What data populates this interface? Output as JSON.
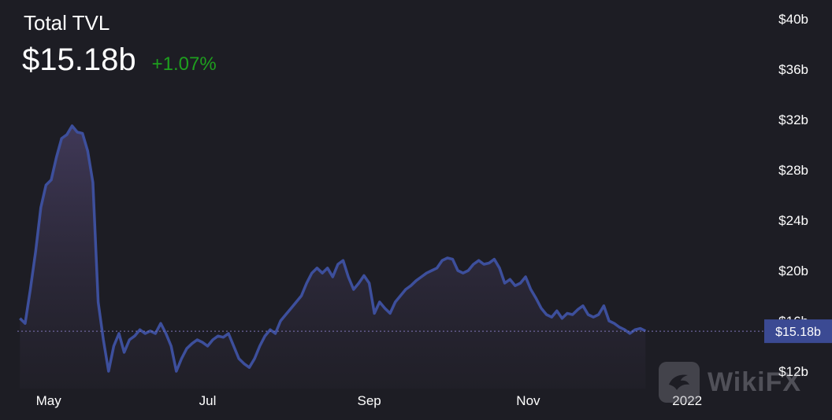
{
  "header": {
    "title": "Total TVL",
    "value": "$15.18b",
    "change": "+1.07%"
  },
  "colors": {
    "background": "#1d1d24",
    "line": "#3d4f9c",
    "change_positive": "#1e9f1e",
    "price_tag_bg": "#3b4a93"
  },
  "watermark": {
    "text": "WikiFX",
    "icon": "wikifx-logo-icon"
  },
  "current_price_label": "$15.18b",
  "chart_data": {
    "type": "area",
    "title": "Total TVL",
    "y_axis_position": "right",
    "ylim": [
      12,
      40
    ],
    "yticks": [
      {
        "value": 40,
        "label": "$40b"
      },
      {
        "value": 36,
        "label": "$36b"
      },
      {
        "value": 32,
        "label": "$32b"
      },
      {
        "value": 28,
        "label": "$28b"
      },
      {
        "value": 24,
        "label": "$24b"
      },
      {
        "value": 20,
        "label": "$20b"
      },
      {
        "value": 16,
        "label": "$16b"
      },
      {
        "value": 12,
        "label": "$12b"
      }
    ],
    "xlim": [
      "2021-04-19",
      "2022-01-23"
    ],
    "xticks": [
      {
        "x": "2021-05-01",
        "label": "May"
      },
      {
        "x": "2021-07-01",
        "label": "Jul"
      },
      {
        "x": "2021-09-01",
        "label": "Sep"
      },
      {
        "x": "2021-11-01",
        "label": "Nov"
      },
      {
        "x": "2022-01-01",
        "label": "2022"
      }
    ],
    "current_value": 15.18,
    "series": [
      {
        "points": [
          [
            "2021-04-20",
            16.2
          ],
          [
            "2021-04-22",
            15.8
          ],
          [
            "2021-04-24",
            18.5
          ],
          [
            "2021-04-26",
            21.5
          ],
          [
            "2021-04-28",
            25.0
          ],
          [
            "2021-04-30",
            26.8
          ],
          [
            "2021-05-02",
            27.2
          ],
          [
            "2021-05-04",
            29.0
          ],
          [
            "2021-05-06",
            30.5
          ],
          [
            "2021-05-08",
            30.8
          ],
          [
            "2021-05-10",
            31.5
          ],
          [
            "2021-05-12",
            31.0
          ],
          [
            "2021-05-14",
            30.9
          ],
          [
            "2021-05-16",
            29.5
          ],
          [
            "2021-05-18",
            27.0
          ],
          [
            "2021-05-20",
            17.5
          ],
          [
            "2021-05-22",
            14.5
          ],
          [
            "2021-05-24",
            12.0
          ],
          [
            "2021-05-26",
            14.0
          ],
          [
            "2021-05-28",
            15.0
          ],
          [
            "2021-05-30",
            13.5
          ],
          [
            "2021-06-01",
            14.5
          ],
          [
            "2021-06-03",
            14.8
          ],
          [
            "2021-06-05",
            15.3
          ],
          [
            "2021-06-07",
            15.0
          ],
          [
            "2021-06-09",
            15.2
          ],
          [
            "2021-06-11",
            15.0
          ],
          [
            "2021-06-13",
            15.8
          ],
          [
            "2021-06-15",
            15.0
          ],
          [
            "2021-06-17",
            14.0
          ],
          [
            "2021-06-19",
            12.0
          ],
          [
            "2021-06-21",
            13.0
          ],
          [
            "2021-06-23",
            13.8
          ],
          [
            "2021-06-25",
            14.2
          ],
          [
            "2021-06-27",
            14.5
          ],
          [
            "2021-06-29",
            14.3
          ],
          [
            "2021-07-01",
            14.0
          ],
          [
            "2021-07-03",
            14.5
          ],
          [
            "2021-07-05",
            14.8
          ],
          [
            "2021-07-07",
            14.7
          ],
          [
            "2021-07-09",
            15.0
          ],
          [
            "2021-07-11",
            14.0
          ],
          [
            "2021-07-13",
            13.0
          ],
          [
            "2021-07-15",
            12.6
          ],
          [
            "2021-07-17",
            12.3
          ],
          [
            "2021-07-19",
            13.0
          ],
          [
            "2021-07-21",
            14.0
          ],
          [
            "2021-07-23",
            14.8
          ],
          [
            "2021-07-25",
            15.3
          ],
          [
            "2021-07-27",
            15.0
          ],
          [
            "2021-07-29",
            16.0
          ],
          [
            "2021-07-31",
            16.5
          ],
          [
            "2021-08-02",
            17.0
          ],
          [
            "2021-08-04",
            17.5
          ],
          [
            "2021-08-06",
            18.0
          ],
          [
            "2021-08-08",
            19.0
          ],
          [
            "2021-08-10",
            19.8
          ],
          [
            "2021-08-12",
            20.2
          ],
          [
            "2021-08-14",
            19.8
          ],
          [
            "2021-08-16",
            20.2
          ],
          [
            "2021-08-18",
            19.5
          ],
          [
            "2021-08-20",
            20.5
          ],
          [
            "2021-08-22",
            20.8
          ],
          [
            "2021-08-24",
            19.5
          ],
          [
            "2021-08-26",
            18.5
          ],
          [
            "2021-08-28",
            19.0
          ],
          [
            "2021-08-30",
            19.6
          ],
          [
            "2021-09-01",
            19.0
          ],
          [
            "2021-09-03",
            16.6
          ],
          [
            "2021-09-05",
            17.5
          ],
          [
            "2021-09-07",
            17.0
          ],
          [
            "2021-09-09",
            16.6
          ],
          [
            "2021-09-11",
            17.5
          ],
          [
            "2021-09-13",
            18.0
          ],
          [
            "2021-09-15",
            18.5
          ],
          [
            "2021-09-17",
            18.8
          ],
          [
            "2021-09-19",
            19.2
          ],
          [
            "2021-09-21",
            19.5
          ],
          [
            "2021-09-23",
            19.8
          ],
          [
            "2021-09-25",
            20.0
          ],
          [
            "2021-09-27",
            20.2
          ],
          [
            "2021-09-29",
            20.8
          ],
          [
            "2021-10-01",
            21.0
          ],
          [
            "2021-10-03",
            20.9
          ],
          [
            "2021-10-05",
            20.0
          ],
          [
            "2021-10-07",
            19.8
          ],
          [
            "2021-10-09",
            20.0
          ],
          [
            "2021-10-11",
            20.5
          ],
          [
            "2021-10-13",
            20.8
          ],
          [
            "2021-10-15",
            20.5
          ],
          [
            "2021-10-17",
            20.6
          ],
          [
            "2021-10-19",
            20.9
          ],
          [
            "2021-10-21",
            20.2
          ],
          [
            "2021-10-23",
            19.0
          ],
          [
            "2021-10-25",
            19.3
          ],
          [
            "2021-10-27",
            18.8
          ],
          [
            "2021-10-29",
            19.0
          ],
          [
            "2021-10-31",
            19.5
          ],
          [
            "2021-11-02",
            18.5
          ],
          [
            "2021-11-04",
            17.8
          ],
          [
            "2021-11-06",
            17.0
          ],
          [
            "2021-11-08",
            16.5
          ],
          [
            "2021-11-10",
            16.3
          ],
          [
            "2021-11-12",
            16.8
          ],
          [
            "2021-11-14",
            16.2
          ],
          [
            "2021-11-16",
            16.6
          ],
          [
            "2021-11-18",
            16.5
          ],
          [
            "2021-11-20",
            16.9
          ],
          [
            "2021-11-22",
            17.2
          ],
          [
            "2021-11-24",
            16.5
          ],
          [
            "2021-11-26",
            16.3
          ],
          [
            "2021-11-28",
            16.5
          ],
          [
            "2021-11-30",
            17.2
          ],
          [
            "2021-12-02",
            16.0
          ],
          [
            "2021-12-04",
            15.8
          ],
          [
            "2021-12-06",
            15.5
          ],
          [
            "2021-12-08",
            15.3
          ],
          [
            "2021-12-10",
            15.0
          ],
          [
            "2021-12-12",
            15.3
          ],
          [
            "2021-12-14",
            15.4
          ],
          [
            "2021-12-16",
            15.2
          ]
        ]
      }
    ]
  }
}
